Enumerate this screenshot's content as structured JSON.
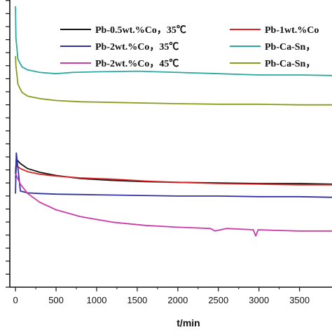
{
  "chart_data": {
    "type": "line",
    "xlabel": "t/min",
    "ylabel": "",
    "xlim": [
      -70,
      3900
    ],
    "ylim": [
      0,
      46
    ],
    "x_ticks": [
      0,
      500,
      1000,
      1500,
      2000,
      2500,
      3000,
      3500
    ],
    "x_tick_labels": [
      "0",
      "500",
      "1000",
      "1500",
      "2000",
      "2500",
      "3000",
      "3500"
    ],
    "grid": false,
    "legend_position": "top",
    "series": [
      {
        "name": "Pb-0.5wt.%Co，35℃",
        "color": "#111111",
        "x": [
          0,
          10,
          60,
          150,
          300,
          500,
          800,
          1200,
          1600,
          2000,
          2500,
          3000,
          3500,
          3900
        ],
        "y": [
          18.2,
          20.5,
          19.8,
          19.0,
          18.4,
          17.9,
          17.4,
          17.1,
          16.9,
          16.8,
          16.7,
          16.6,
          16.6,
          16.5
        ]
      },
      {
        "name": "Pb-1wt.%Co",
        "color": "#e02020",
        "x": [
          0,
          10,
          60,
          150,
          300,
          500,
          800,
          1200,
          1600,
          2000,
          2500,
          3000,
          3500,
          3900
        ],
        "y": [
          17.5,
          19.5,
          19.0,
          18.5,
          18.1,
          17.8,
          17.5,
          17.3,
          17.0,
          16.8,
          16.6,
          16.5,
          16.4,
          16.4
        ]
      },
      {
        "name": "Pb-2wt.%Co，35℃",
        "color": "#3030a0",
        "x": [
          0,
          10,
          60,
          150,
          300,
          500,
          1000,
          1500,
          2000,
          2500,
          3000,
          3500,
          3900
        ],
        "y": [
          15.0,
          21.5,
          15.4,
          15.1,
          15.0,
          14.9,
          14.8,
          14.7,
          14.6,
          14.6,
          14.5,
          14.5,
          14.4
        ]
      },
      {
        "name": "Pb-Ca-Sn",
        "color": "#2aa8a0",
        "x": [
          0,
          5,
          30,
          80,
          150,
          300,
          500,
          700,
          1000,
          1500,
          2000,
          2500,
          3000,
          3500,
          3900
        ],
        "y": [
          45.0,
          40.0,
          36.5,
          35.3,
          34.8,
          34.4,
          34.2,
          34.4,
          34.5,
          34.6,
          34.4,
          34.2,
          34.0,
          34.0,
          33.9
        ]
      },
      {
        "name": "Pb-2wt.%Co，45℃",
        "color": "#cc3aa8",
        "x": [
          0,
          60,
          150,
          300,
          500,
          800,
          1200,
          1600,
          2000,
          2400,
          2460,
          2600,
          2930,
          2960,
          2990,
          3200,
          3500,
          3900
        ],
        "y": [
          18.2,
          16.5,
          15.0,
          13.6,
          12.4,
          11.3,
          10.4,
          9.9,
          9.6,
          9.4,
          9.0,
          9.4,
          9.2,
          8.2,
          9.2,
          9.1,
          9.0,
          9.0
        ]
      },
      {
        "name": "Pb-Ca-Sn",
        "color": "#8a9a18",
        "x": [
          0,
          5,
          30,
          80,
          150,
          300,
          500,
          800,
          1200,
          1600,
          2000,
          2500,
          3000,
          3500,
          3900
        ],
        "y": [
          37.0,
          35.5,
          32.5,
          31.2,
          30.6,
          30.2,
          29.9,
          29.7,
          29.6,
          29.5,
          29.4,
          29.3,
          29.3,
          29.2,
          29.2
        ]
      }
    ],
    "legend": [
      {
        "label": "Pb-0.5wt.%Co，35℃",
        "color": "#111111"
      },
      {
        "label": "Pb-1wt.%Co",
        "color": "#e02020"
      },
      {
        "label": "Pb-2wt.%Co，35℃",
        "color": "#3030a0"
      },
      {
        "label": "Pb-Ca-Sn，",
        "color": "#2aa8a0"
      },
      {
        "label": "Pb-2wt.%Co，45℃",
        "color": "#cc3aa8"
      },
      {
        "label": "Pb-Ca-Sn，",
        "color": "#8a9a18"
      }
    ]
  }
}
